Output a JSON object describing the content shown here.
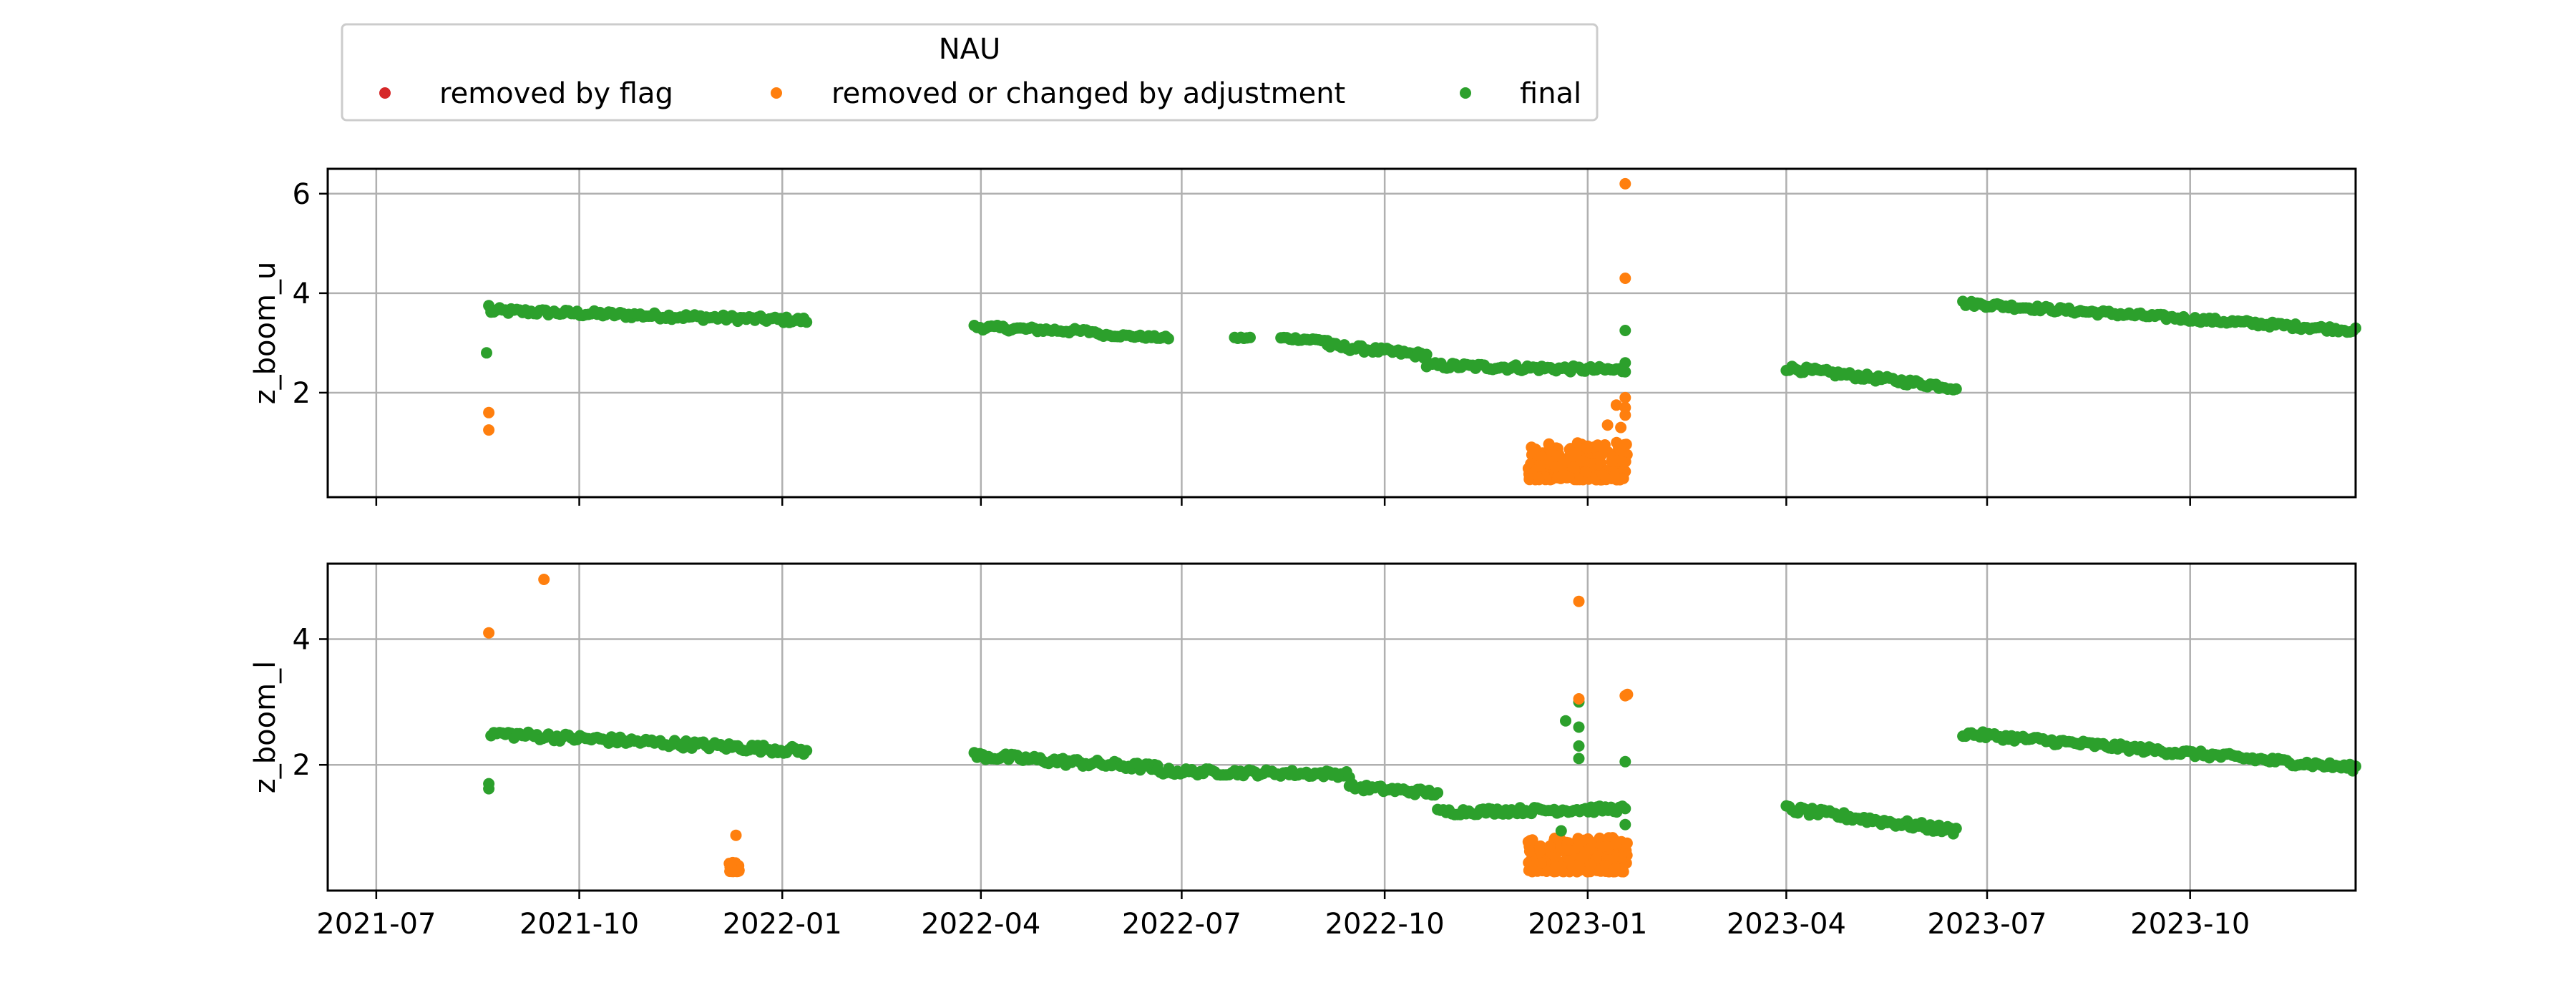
{
  "chart_data": {
    "type": "scatter",
    "legend": {
      "title": "NAU",
      "placement": "top-left",
      "entries": [
        {
          "label": "removed by flag",
          "color": "#d62728"
        },
        {
          "label": "removed or changed by adjustment",
          "color": "#ff7f0e"
        },
        {
          "label": "final",
          "color": "#2ca02c"
        }
      ]
    },
    "x_axis": {
      "type": "date",
      "range": [
        "2021-06-09",
        "2023-12-15"
      ],
      "ticks": [
        "2021-07",
        "2021-10",
        "2022-01",
        "2022-04",
        "2022-07",
        "2022-10",
        "2023-01",
        "2023-04",
        "2023-07",
        "2023-10"
      ],
      "grid": true
    },
    "panels": [
      {
        "ylabel": "z_boom_u",
        "ylim": [
          -0.1,
          6.5
        ],
        "yticks": [
          "2",
          "4",
          "6"
        ],
        "grid": true,
        "final_segments": [
          {
            "start": "2021-08-22",
            "end": "2022-01-12",
            "y_start": 3.65,
            "y_end": 3.45,
            "jitter": 0.06
          },
          {
            "start": "2022-03-29",
            "end": "2022-05-24",
            "y_start": 3.32,
            "y_end": 3.22,
            "jitter": 0.05
          },
          {
            "start": "2022-05-24",
            "end": "2022-06-25",
            "y_start": 3.17,
            "y_end": 3.1,
            "jitter": 0.03
          },
          {
            "start": "2022-07-25",
            "end": "2022-08-01",
            "y_start": 3.1,
            "y_end": 3.1,
            "jitter": 0.02
          },
          {
            "start": "2022-08-15",
            "end": "2022-09-05",
            "y_start": 3.1,
            "y_end": 3.05,
            "jitter": 0.03
          },
          {
            "start": "2022-09-05",
            "end": "2022-10-20",
            "y_start": 2.95,
            "y_end": 2.75,
            "jitter": 0.06
          },
          {
            "start": "2022-10-20",
            "end": "2023-01-18",
            "y_start": 2.55,
            "y_end": 2.45,
            "jitter": 0.06
          },
          {
            "start": "2023-04-01",
            "end": "2023-06-17",
            "y_start": 2.5,
            "y_end": 2.1,
            "jitter": 0.06
          },
          {
            "start": "2023-06-20",
            "end": "2023-12-15",
            "y_start": 3.8,
            "y_end": 3.25,
            "jitter": 0.05
          }
        ],
        "final_points": [
          {
            "x": "2021-08-20",
            "y": 2.8
          },
          {
            "x": "2021-08-21",
            "y": 3.75
          },
          {
            "x": "2021-08-22",
            "y": 3.62
          },
          {
            "x": "2023-01-18",
            "y": 3.25
          },
          {
            "x": "2023-01-18",
            "y": 2.6
          }
        ],
        "adjusted_points": [
          {
            "x": "2021-08-21",
            "y": 1.6
          },
          {
            "x": "2021-08-21",
            "y": 1.25
          },
          {
            "x": "2023-01-18",
            "y": 6.2
          },
          {
            "x": "2023-01-18",
            "y": 4.3
          },
          {
            "x": "2023-01-18",
            "y": 1.9
          },
          {
            "x": "2023-01-18",
            "y": 1.7
          },
          {
            "x": "2023-01-18",
            "y": 1.55
          },
          {
            "x": "2023-01-14",
            "y": 1.75
          },
          {
            "x": "2023-01-16",
            "y": 1.3
          },
          {
            "x": "2023-01-10",
            "y": 1.35
          }
        ],
        "adjusted_cluster": {
          "start": "2022-12-05",
          "end": "2023-01-19",
          "y_min": 0.25,
          "y_max": 1.0
        }
      },
      {
        "ylabel": "z_boom_l",
        "ylim": [
          0.0,
          5.2
        ],
        "yticks": [
          "2",
          "4"
        ],
        "grid": true,
        "final_segments": [
          {
            "start": "2021-08-22",
            "end": "2022-01-12",
            "y_start": 2.5,
            "y_end": 2.22,
            "jitter": 0.06
          },
          {
            "start": "2022-03-29",
            "end": "2022-06-20",
            "y_start": 2.15,
            "y_end": 1.95,
            "jitter": 0.06
          },
          {
            "start": "2022-06-20",
            "end": "2022-09-15",
            "y_start": 1.9,
            "y_end": 1.85,
            "jitter": 0.05
          },
          {
            "start": "2022-09-15",
            "end": "2022-10-25",
            "y_start": 1.65,
            "y_end": 1.55,
            "jitter": 0.05
          },
          {
            "start": "2022-10-25",
            "end": "2023-01-18",
            "y_start": 1.25,
            "y_end": 1.3,
            "jitter": 0.05
          },
          {
            "start": "2023-04-01",
            "end": "2023-06-17",
            "y_start": 1.3,
            "y_end": 0.95,
            "jitter": 0.06
          },
          {
            "start": "2023-06-20",
            "end": "2023-12-15",
            "y_start": 2.5,
            "y_end": 1.95,
            "jitter": 0.05
          }
        ],
        "final_points": [
          {
            "x": "2021-08-21",
            "y": 1.7
          },
          {
            "x": "2021-08-21",
            "y": 1.62
          },
          {
            "x": "2022-12-22",
            "y": 2.7
          },
          {
            "x": "2022-12-28",
            "y": 3.0
          },
          {
            "x": "2022-12-28",
            "y": 2.6
          },
          {
            "x": "2022-12-28",
            "y": 2.3
          },
          {
            "x": "2022-12-28",
            "y": 2.1
          },
          {
            "x": "2023-01-18",
            "y": 2.05
          },
          {
            "x": "2023-01-18",
            "y": 1.05
          },
          {
            "x": "2022-12-20",
            "y": 0.95
          }
        ],
        "adjusted_points": [
          {
            "x": "2021-08-21",
            "y": 4.1
          },
          {
            "x": "2021-09-15",
            "y": 4.95
          },
          {
            "x": "2021-12-11",
            "y": 0.88
          },
          {
            "x": "2022-12-28",
            "y": 4.6
          },
          {
            "x": "2022-12-28",
            "y": 3.05
          },
          {
            "x": "2023-01-18",
            "y": 3.1
          },
          {
            "x": "2023-01-19",
            "y": 3.12
          }
        ],
        "adjusted_clusters": [
          {
            "start": "2021-12-08",
            "end": "2021-12-13",
            "y_min": 0.3,
            "y_max": 0.45
          },
          {
            "start": "2022-12-05",
            "end": "2023-01-19",
            "y_min": 0.3,
            "y_max": 0.85
          }
        ]
      }
    ]
  }
}
